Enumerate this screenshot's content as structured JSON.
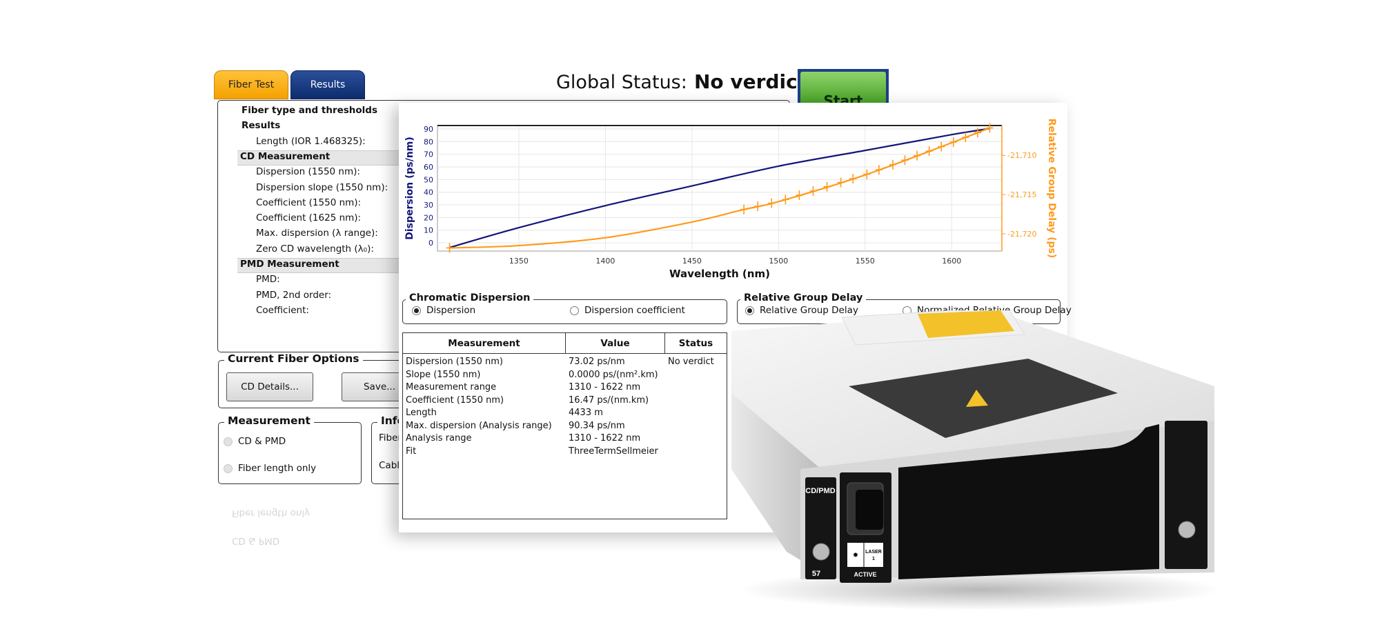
{
  "tabs": [
    {
      "label": "Fiber Test",
      "active": true
    },
    {
      "label": "Results",
      "active": false
    }
  ],
  "header": {
    "global_status_label": "Global Status:",
    "global_status_value": "No verdict",
    "start_button": "Start",
    "start_color": "#4aa52a"
  },
  "left_panel": {
    "items": [
      {
        "label": "Fiber type and thresholds",
        "type": "title"
      },
      {
        "label": "Results",
        "type": "title"
      },
      {
        "label": "Length (IOR 1.468325):",
        "type": "item"
      },
      {
        "label": "CD Measurement",
        "type": "section"
      },
      {
        "label": "Dispersion (1550 nm):",
        "type": "item"
      },
      {
        "label": "Dispersion slope (1550 nm):",
        "type": "item"
      },
      {
        "label": "Coefficient (1550 nm):",
        "type": "item"
      },
      {
        "label": "Coefficient (1625 nm):",
        "type": "item"
      },
      {
        "label": "Max. dispersion (λ range):",
        "type": "item"
      },
      {
        "label": "Zero CD wavelength (λ₀):",
        "type": "item"
      },
      {
        "label": "PMD Measurement",
        "type": "section"
      },
      {
        "label": "PMD:",
        "type": "item"
      },
      {
        "label": "PMD, 2nd order:",
        "type": "item"
      },
      {
        "label": "Coefficient:",
        "type": "item"
      }
    ]
  },
  "fiber_options": {
    "title": "Current Fiber Options",
    "cd_details": "CD Details...",
    "save": "Save..."
  },
  "measurement": {
    "title": "Measurement",
    "options": [
      {
        "label": "CD & PMD",
        "selected": false
      },
      {
        "label": "Fiber length only",
        "selected": false
      }
    ]
  },
  "info": {
    "title": "Infor",
    "rows": [
      "Fiber",
      "Cable"
    ]
  },
  "chromatic_dispersion": {
    "title": "Chromatic Dispersion",
    "options": [
      {
        "label": "Dispersion",
        "selected": true
      },
      {
        "label": "Dispersion coefficient",
        "selected": false
      }
    ]
  },
  "relative_group_delay": {
    "title": "Relative Group Delay",
    "options": [
      {
        "label": "Relative Group Delay",
        "selected": true
      },
      {
        "label": "Normalized Relative Group Delay",
        "selected": false
      }
    ]
  },
  "table": {
    "columns": [
      "Measurement",
      "Value",
      "Status"
    ],
    "rows": [
      [
        "Dispersion (1550 nm)",
        "73.02 ps/nm",
        "No verdict"
      ],
      [
        "Slope (1550 nm)",
        "0.0000 ps/(nm².km)",
        ""
      ],
      [
        "Measurement range",
        "1310 - 1622 nm",
        ""
      ],
      [
        "Coefficient (1550 nm)",
        "16.47 ps/(nm.km)",
        ""
      ],
      [
        "Length",
        "4433 m",
        ""
      ],
      [
        "Max. dispersion (Analysis range)",
        "90.34 ps/nm",
        ""
      ],
      [
        "Analysis range",
        "1310 - 1622 nm",
        ""
      ],
      [
        "Fit",
        "ThreeTermSellmeier",
        ""
      ]
    ]
  },
  "device": {
    "port_label": "CD/PMD",
    "laser_label": "LASER",
    "laser_num": "1",
    "active_label": "ACTIVE",
    "slot_label": "57"
  },
  "chart_data": {
    "type": "line",
    "xlabel": "Wavelength (nm)",
    "ylabel": "Dispersion (ps/nm)",
    "y2label": "Relative Group Delay (ps)",
    "xlim": [
      1303,
      1629
    ],
    "ylim": [
      -6.5,
      92.7
    ],
    "y2lim": [
      -21722.2,
      -21706.2
    ],
    "xticks": [
      1350,
      1400,
      1450,
      1500,
      1550,
      1600
    ],
    "yticks": [
      0,
      10,
      20,
      30,
      40,
      50,
      60,
      70,
      80,
      90
    ],
    "y2ticks": [
      -21710,
      -21715,
      -21720
    ],
    "y2tick_labels": [
      "-21,710",
      "-21,715",
      "-21,720"
    ],
    "grid": true,
    "series": [
      {
        "axis": "left",
        "color": "#10157a",
        "x": [
          1310,
          1350,
          1400,
          1450,
          1500,
          1550,
          1600,
          1622
        ],
        "y": [
          -3.7,
          12,
          29.4,
          45,
          60.6,
          73.0,
          85.5,
          90.3
        ]
      },
      {
        "axis": "right",
        "color": "#ff9a1a",
        "marker": "+",
        "x": [
          1310,
          1350,
          1400,
          1450,
          1480,
          1500,
          1550,
          1600,
          1622
        ],
        "y": [
          -21721.8,
          -21721.5,
          -21720.5,
          -21718.5,
          -21716.9,
          -21715.9,
          -21712.5,
          -21708.4,
          -21706.5
        ],
        "marker_x": [
          1310,
          1480,
          1488,
          1496,
          1504,
          1512,
          1520,
          1528,
          1536,
          1543,
          1551,
          1558,
          1566,
          1573,
          1580,
          1587,
          1594,
          1601,
          1608,
          1615,
          1622
        ]
      }
    ]
  }
}
